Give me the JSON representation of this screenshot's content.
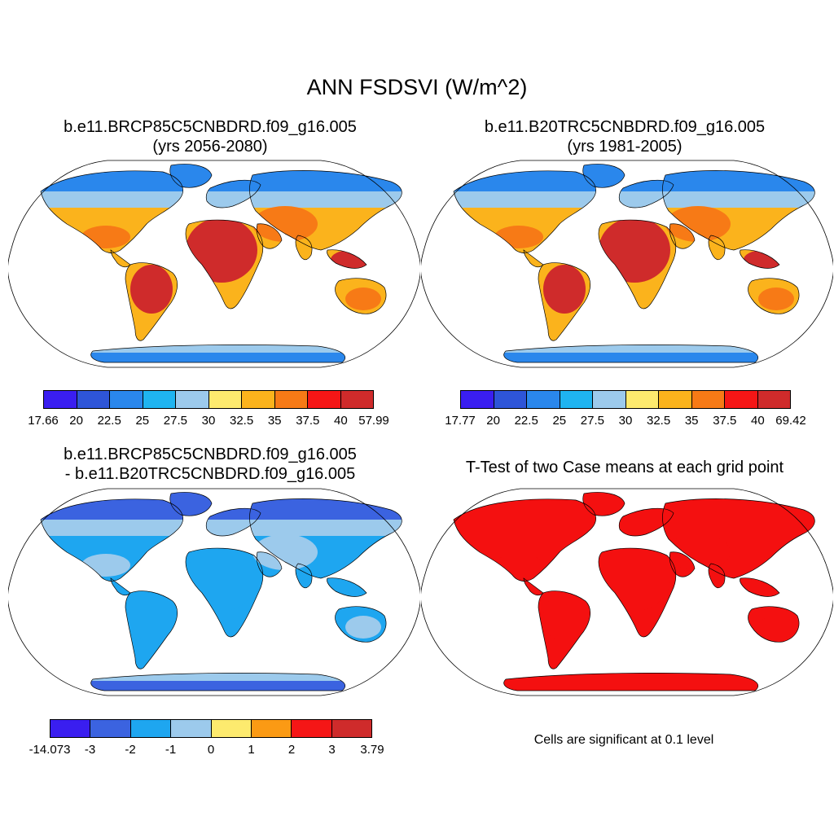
{
  "figure": {
    "title": "ANN FSDSVI (W/m^2)"
  },
  "panels": {
    "top_left": {
      "title_line1": "b.e11.BRCP85C5CNBDRD.f09_g16.005",
      "title_line2": "(yrs 2056-2080)"
    },
    "top_right": {
      "title_line1": "b.e11.B20TRC5CNBDRD.f09_g16.005",
      "title_line2": "(yrs 1981-2005)"
    },
    "bottom_left": {
      "title_line1": "b.e11.BRCP85C5CNBDRD.f09_g16.005",
      "title_line2": "- b.e11.B20TRC5CNBDRD.f09_g16.005"
    },
    "bottom_right": {
      "title": "T-Test of two Case means at each grid point",
      "note": "Cells are significant at 0.1 level"
    }
  },
  "colorbars": {
    "case1": {
      "labels": [
        "17.66",
        "20",
        "22.5",
        "25",
        "27.5",
        "30",
        "32.5",
        "35",
        "37.5",
        "40",
        "57.99"
      ],
      "colors": [
        "#3a1ef0",
        "#2e55d8",
        "#2a87ec",
        "#1fb4f0",
        "#9ccaec",
        "#fdea6e",
        "#fbb31c",
        "#f77a16",
        "#f51616",
        "#cf2b2b"
      ]
    },
    "case2": {
      "labels": [
        "17.77",
        "20",
        "22.5",
        "25",
        "27.5",
        "30",
        "32.5",
        "35",
        "37.5",
        "40",
        "69.42"
      ],
      "colors": [
        "#3a1ef0",
        "#2e55d8",
        "#2a87ec",
        "#1fb4f0",
        "#9ccaec",
        "#fdea6e",
        "#fbb31c",
        "#f77a16",
        "#f51616",
        "#cf2b2b"
      ]
    },
    "diff": {
      "labels": [
        "-14.073",
        "-3",
        "-2",
        "-1",
        "0",
        "1",
        "2",
        "3",
        "3.79"
      ],
      "colors": [
        "#3a1ef0",
        "#3b63e0",
        "#1ea6f0",
        "#9ccaec",
        "#fdea6e",
        "#fb9a14",
        "#f51616",
        "#cf2b2b"
      ]
    }
  },
  "map_colors": {
    "case1": {
      "lo": "#2a87ec",
      "mid": "#fbb31c",
      "hot": "#f77a16",
      "top": "#cf2b2b",
      "ice": "#9ccaec"
    },
    "case2": {
      "lo": "#2a87ec",
      "mid": "#fbb31c",
      "hot": "#f77a16",
      "top": "#cf2b2b",
      "ice": "#9ccaec"
    },
    "diff": {
      "lo": "#3b63e0",
      "mid": "#1ea6f0",
      "hot": "#9ccaec",
      "top": "#1ea6f0",
      "ice": "#9ccaec"
    },
    "ttest": {
      "lo": "#f41010",
      "mid": "#f41010",
      "hot": "#f41010",
      "top": "#f41010",
      "ice": "#f41010"
    }
  }
}
